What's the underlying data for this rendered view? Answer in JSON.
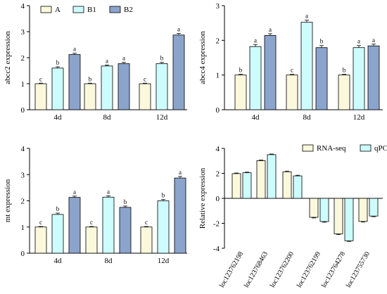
{
  "colors": {
    "A": "#fbf8dc",
    "B1": "#cdfcfd",
    "B2": "#8ba4cc",
    "RNA-seq": "#fbf8dc",
    "qPCR": "#cdfcfd",
    "stroke": "#000000"
  },
  "chart_data": [
    {
      "type": "bar",
      "ylabel": "abcc2 expression",
      "ylim": [
        0,
        4
      ],
      "yticks": [
        0,
        1,
        2,
        3,
        4
      ],
      "categories": [
        "4d",
        "8d",
        "12d"
      ],
      "legend": [
        "A",
        "B1",
        "B2"
      ],
      "series": [
        {
          "name": "A",
          "values": [
            1.0,
            1.0,
            1.0
          ],
          "errors": [
            0.02,
            0.02,
            0.02
          ],
          "labels": [
            "c",
            "b",
            "c"
          ]
        },
        {
          "name": "B1",
          "values": [
            1.6,
            1.68,
            1.77
          ],
          "errors": [
            0.05,
            0.04,
            0.05
          ],
          "labels": [
            "b",
            "a",
            "b"
          ]
        },
        {
          "name": "B2",
          "values": [
            2.12,
            1.77,
            2.87
          ],
          "errors": [
            0.05,
            0.05,
            0.06
          ],
          "labels": [
            "a",
            "a",
            "a"
          ]
        }
      ]
    },
    {
      "type": "bar",
      "ylabel": "abcc4 expression",
      "ylim": [
        0,
        3
      ],
      "yticks": [
        0,
        1,
        2,
        3
      ],
      "categories": [
        "4d",
        "8d",
        "12d"
      ],
      "series": [
        {
          "name": "A",
          "values": [
            1.0,
            1.0,
            1.0
          ],
          "errors": [
            0.02,
            0.02,
            0.02
          ],
          "labels": [
            "b",
            "c",
            "b"
          ]
        },
        {
          "name": "B1",
          "values": [
            1.82,
            2.52,
            1.79
          ],
          "errors": [
            0.06,
            0.06,
            0.06
          ],
          "labels": [
            "a",
            "a",
            "a"
          ]
        },
        {
          "name": "B2",
          "values": [
            2.14,
            1.79,
            1.84
          ],
          "errors": [
            0.05,
            0.06,
            0.05
          ],
          "labels": [
            "a",
            "b",
            "a"
          ]
        }
      ]
    },
    {
      "type": "bar",
      "ylabel": "mt expression",
      "ylim": [
        0,
        4
      ],
      "yticks": [
        0,
        1,
        2,
        3,
        4
      ],
      "categories": [
        "4d",
        "8d",
        "12d"
      ],
      "series": [
        {
          "name": "A",
          "values": [
            1.0,
            1.0,
            1.0
          ],
          "errors": [
            0.02,
            0.02,
            0.02
          ],
          "labels": [
            "c",
            "c",
            "c"
          ]
        },
        {
          "name": "B1",
          "values": [
            1.48,
            2.14,
            2.0
          ],
          "errors": [
            0.05,
            0.05,
            0.05
          ],
          "labels": [
            "b",
            "a",
            "b"
          ]
        },
        {
          "name": "B2",
          "values": [
            2.13,
            1.75,
            2.87
          ],
          "errors": [
            0.05,
            0.05,
            0.06
          ],
          "labels": [
            "a",
            "b",
            "a"
          ]
        }
      ]
    },
    {
      "type": "bar",
      "ylabel": "Relative expression",
      "ylim": [
        -4,
        4
      ],
      "yticks": [
        -4,
        -2,
        0,
        2,
        4
      ],
      "categories": [
        "loc123762198",
        "loc123768463",
        "loc123762200",
        "loc123762199",
        "loc123764278",
        "loc123755730"
      ],
      "legend": [
        "RNA-seq",
        "qPCR"
      ],
      "series": [
        {
          "name": "RNA-seq",
          "values": [
            1.98,
            3.02,
            2.13,
            -1.52,
            -2.85,
            -1.85
          ],
          "errors": [
            0.05,
            0.05,
            0.05,
            0.05,
            0.05,
            0.05
          ]
        },
        {
          "name": "qPCR",
          "values": [
            2.05,
            3.5,
            1.8,
            -1.86,
            -3.4,
            -1.42
          ],
          "errors": [
            0.05,
            0.05,
            0.05,
            0.05,
            0.05,
            0.05
          ]
        }
      ]
    }
  ]
}
